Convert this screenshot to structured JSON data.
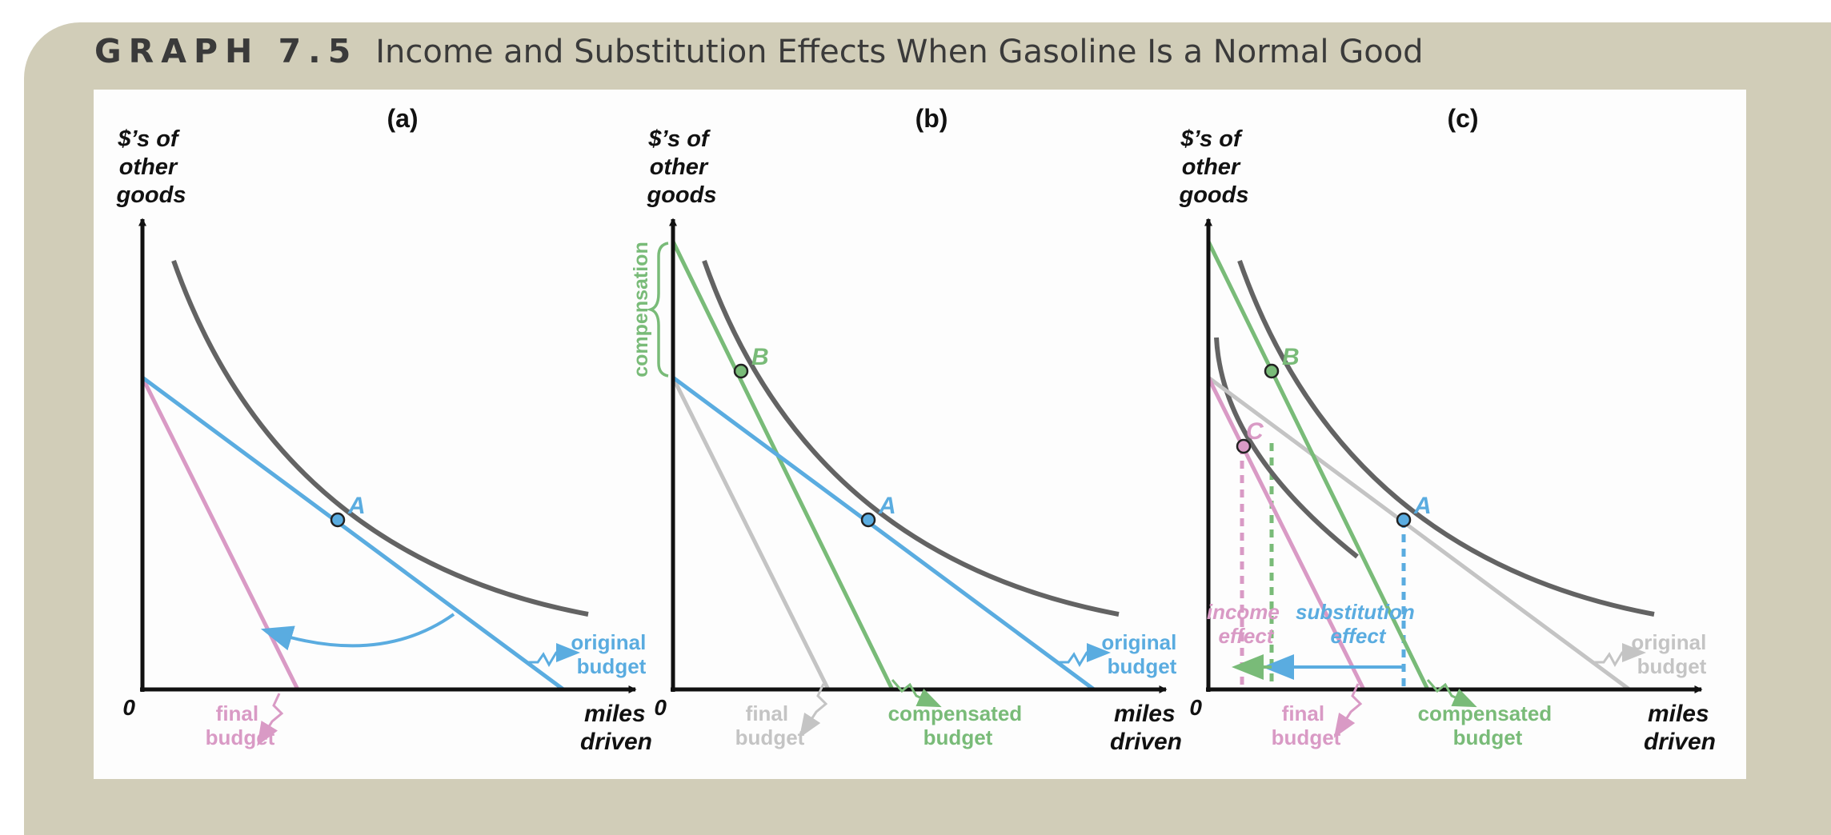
{
  "figure": {
    "label": "GRAPH 7.5",
    "title": "Income and Substitution Effects When Gasoline Is a Normal Good"
  },
  "panels": [
    {
      "id": "a",
      "title": "(a)"
    },
    {
      "id": "b",
      "title": "(b)"
    },
    {
      "id": "c",
      "title": "(c)"
    }
  ],
  "axes": {
    "y_label_lines": [
      "$’s of",
      "other",
      "goods"
    ],
    "x_label_lines": [
      "miles",
      "driven"
    ],
    "origin": "0"
  },
  "points": {
    "A": "A",
    "B": "B",
    "C": "C"
  },
  "budget_labels": {
    "original": [
      "original",
      "budget"
    ],
    "final": [
      "final",
      "budget"
    ],
    "compensated": [
      "compensated",
      "budget"
    ]
  },
  "annotations": {
    "compensation": "compensation",
    "income_effect": [
      "income",
      "effect"
    ],
    "substitution_effect": [
      "substitution",
      "effect"
    ]
  },
  "colors": {
    "frame": "#d1cdb8",
    "original_budget": "#5aace0",
    "final_budget": "#d99ac5",
    "compensated_budget": "#79bb78",
    "indifference_curve": "#636363",
    "gray_budget": "#c4c4c4",
    "axis": "#111111"
  }
}
